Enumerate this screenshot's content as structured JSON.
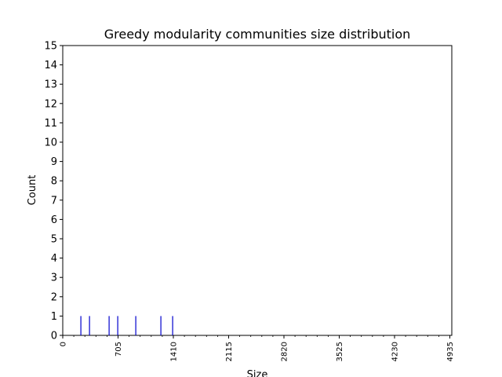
{
  "chart_data": {
    "type": "bar",
    "title": "Greedy modularity communities size distribution",
    "xlabel": "Size",
    "ylabel": "Count",
    "xlim": [
      0,
      4960
    ],
    "ylim": [
      0,
      15
    ],
    "xticks": [
      0,
      705,
      1410,
      2115,
      2820,
      3525,
      4230,
      4935
    ],
    "yticks": [
      0,
      1,
      2,
      3,
      4,
      5,
      6,
      7,
      8,
      9,
      10,
      11,
      12,
      13,
      14,
      15
    ],
    "x": [
      230,
      340,
      590,
      700,
      930,
      1250,
      1400
    ],
    "values": [
      1,
      1,
      1,
      1,
      1,
      1,
      1
    ],
    "bar_color": "#0000cc",
    "grid": false
  }
}
